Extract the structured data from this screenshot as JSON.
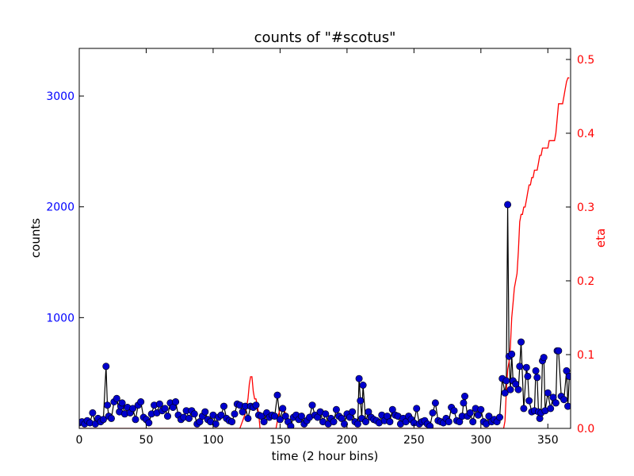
{
  "chart_data": {
    "type": "line",
    "title": "counts of \"#scotus\"",
    "xlabel": "time (2 hour bins)",
    "ylabel_left": "counts",
    "ylabel_right": "eta",
    "xlim": [
      0,
      367
    ],
    "ylim_left": [
      0,
      3430
    ],
    "ylim_right": [
      0,
      0.515
    ],
    "x_ticks": [
      0,
      50,
      100,
      150,
      200,
      250,
      300,
      350
    ],
    "y_ticks_left": [
      1000,
      2000,
      3000
    ],
    "y_ticks_right": [
      0.0,
      0.1,
      0.2,
      0.3,
      0.4,
      0.5
    ],
    "colors": {
      "counts_line": "#000000",
      "counts_marker": "#0000cc",
      "eta_line": "#ff0000",
      "left_ticks": "#0000ff",
      "right_ticks": "#ff0000"
    },
    "series": [
      {
        "axis": "left",
        "x": [
          0,
          2,
          4,
          6,
          8,
          10,
          12,
          14,
          16,
          18,
          20,
          21,
          22,
          24,
          26,
          28,
          30,
          31,
          32,
          34,
          36,
          38,
          40,
          42,
          44,
          46,
          48,
          50,
          52,
          54,
          56,
          58,
          60,
          62,
          64,
          66,
          68,
          70,
          72,
          74,
          76,
          78,
          80,
          82,
          84,
          86,
          88,
          90,
          92,
          94,
          96,
          98,
          100,
          102,
          104,
          106,
          108,
          110,
          112,
          114,
          116,
          118,
          120,
          122,
          124,
          126,
          128,
          130,
          132,
          134,
          136,
          138,
          140,
          142,
          144,
          146,
          148,
          150,
          152,
          154,
          156,
          158,
          160,
          162,
          164,
          166,
          168,
          170,
          172,
          174,
          176,
          178,
          180,
          182,
          184,
          186,
          188,
          190,
          192,
          194,
          196,
          198,
          200,
          202,
          204,
          206,
          208,
          209,
          210,
          211,
          212,
          214,
          216,
          218,
          220,
          222,
          224,
          226,
          228,
          230,
          232,
          234,
          236,
          238,
          240,
          242,
          244,
          246,
          248,
          250,
          252,
          254,
          256,
          258,
          260,
          262,
          264,
          266,
          268,
          270,
          272,
          274,
          276,
          278,
          280,
          282,
          284,
          286,
          287,
          288,
          290,
          292,
          294,
          296,
          298,
          300,
          302,
          304,
          306,
          308,
          310,
          312,
          314,
          316,
          318,
          319,
          320,
          321,
          322,
          323,
          324,
          326,
          328,
          329,
          330,
          332,
          334,
          335,
          336,
          338,
          340,
          341,
          342,
          343,
          344,
          345,
          346,
          347,
          348,
          350,
          352,
          354,
          356,
          357,
          358,
          360,
          362,
          364,
          365,
          366
        ],
        "y": [
          50,
          60,
          40,
          70,
          50,
          140,
          40,
          90,
          60,
          80,
          560,
          210,
          110,
          90,
          240,
          270,
          150,
          200,
          230,
          130,
          190,
          140,
          180,
          80,
          210,
          240,
          100,
          80,
          50,
          130,
          210,
          140,
          220,
          160,
          180,
          110,
          230,
          190,
          240,
          120,
          80,
          100,
          160,
          90,
          160,
          130,
          40,
          60,
          110,
          150,
          80,
          60,
          120,
          40,
          100,
          120,
          200,
          90,
          70,
          60,
          130,
          220,
          210,
          150,
          200,
          90,
          200,
          190,
          210,
          120,
          110,
          60,
          140,
          100,
          120,
          110,
          300,
          80,
          180,
          110,
          60,
          20,
          100,
          120,
          80,
          110,
          40,
          70,
          100,
          210,
          120,
          100,
          150,
          60,
          130,
          40,
          90,
          60,
          170,
          110,
          90,
          40,
          130,
          100,
          150,
          60,
          40,
          450,
          250,
          90,
          390,
          60,
          150,
          100,
          80,
          70,
          50,
          120,
          70,
          110,
          60,
          170,
          120,
          110,
          40,
          90,
          60,
          110,
          80,
          50,
          180,
          40,
          60,
          70,
          40,
          20,
          140,
          230,
          70,
          60,
          50,
          90,
          60,
          190,
          160,
          70,
          60,
          110,
          230,
          290,
          110,
          140,
          60,
          180,
          120,
          170,
          60,
          40,
          110,
          60,
          80,
          60,
          100,
          450,
          320,
          430,
          2020,
          650,
          350,
          670,
          430,
          400,
          350,
          560,
          780,
          180,
          550,
          470,
          250,
          150,
          160,
          520,
          460,
          150,
          90,
          140,
          610,
          640,
          160,
          320,
          180,
          280,
          230,
          700,
          700,
          290,
          260,
          520,
          200,
          470
        ]
      },
      {
        "axis": "right",
        "x": [
          0,
          118,
          120,
          122,
          124,
          126,
          127,
          128,
          129,
          130,
          131,
          132,
          133,
          134,
          135,
          136,
          146,
          147,
          148,
          149,
          150,
          151,
          152,
          153,
          154,
          155,
          156,
          157,
          158,
          159,
          160,
          316,
          317,
          318,
          319,
          320,
          321,
          322,
          323,
          324,
          325,
          326,
          327,
          328,
          329,
          330,
          331,
          332,
          333,
          334,
          335,
          336,
          337,
          338,
          339,
          340,
          341,
          342,
          343,
          344,
          345,
          346,
          347,
          348,
          349,
          350,
          351,
          352,
          353,
          354,
          355,
          356,
          357,
          358,
          359,
          360,
          361,
          362,
          363,
          364,
          365,
          366
        ],
        "y": [
          0,
          0,
          0,
          0.01,
          0.02,
          0.04,
          0.06,
          0.07,
          0.07,
          0.05,
          0.04,
          0.04,
          0.03,
          0.02,
          0,
          0,
          0,
          0,
          0.01,
          0.02,
          0.025,
          0.028,
          0.028,
          0.025,
          0.02,
          0.01,
          0,
          0,
          0,
          0,
          0,
          0,
          0,
          0.01,
          0.05,
          0.08,
          0.09,
          0.11,
          0.15,
          0.17,
          0.19,
          0.2,
          0.21,
          0.24,
          0.28,
          0.29,
          0.29,
          0.3,
          0.3,
          0.31,
          0.32,
          0.33,
          0.33,
          0.34,
          0.34,
          0.35,
          0.35,
          0.35,
          0.36,
          0.37,
          0.37,
          0.38,
          0.38,
          0.38,
          0.38,
          0.38,
          0.39,
          0.39,
          0.39,
          0.39,
          0.39,
          0.4,
          0.42,
          0.44,
          0.44,
          0.44,
          0.44,
          0.45,
          0.46,
          0.47,
          0.475,
          0.475
        ]
      }
    ]
  }
}
